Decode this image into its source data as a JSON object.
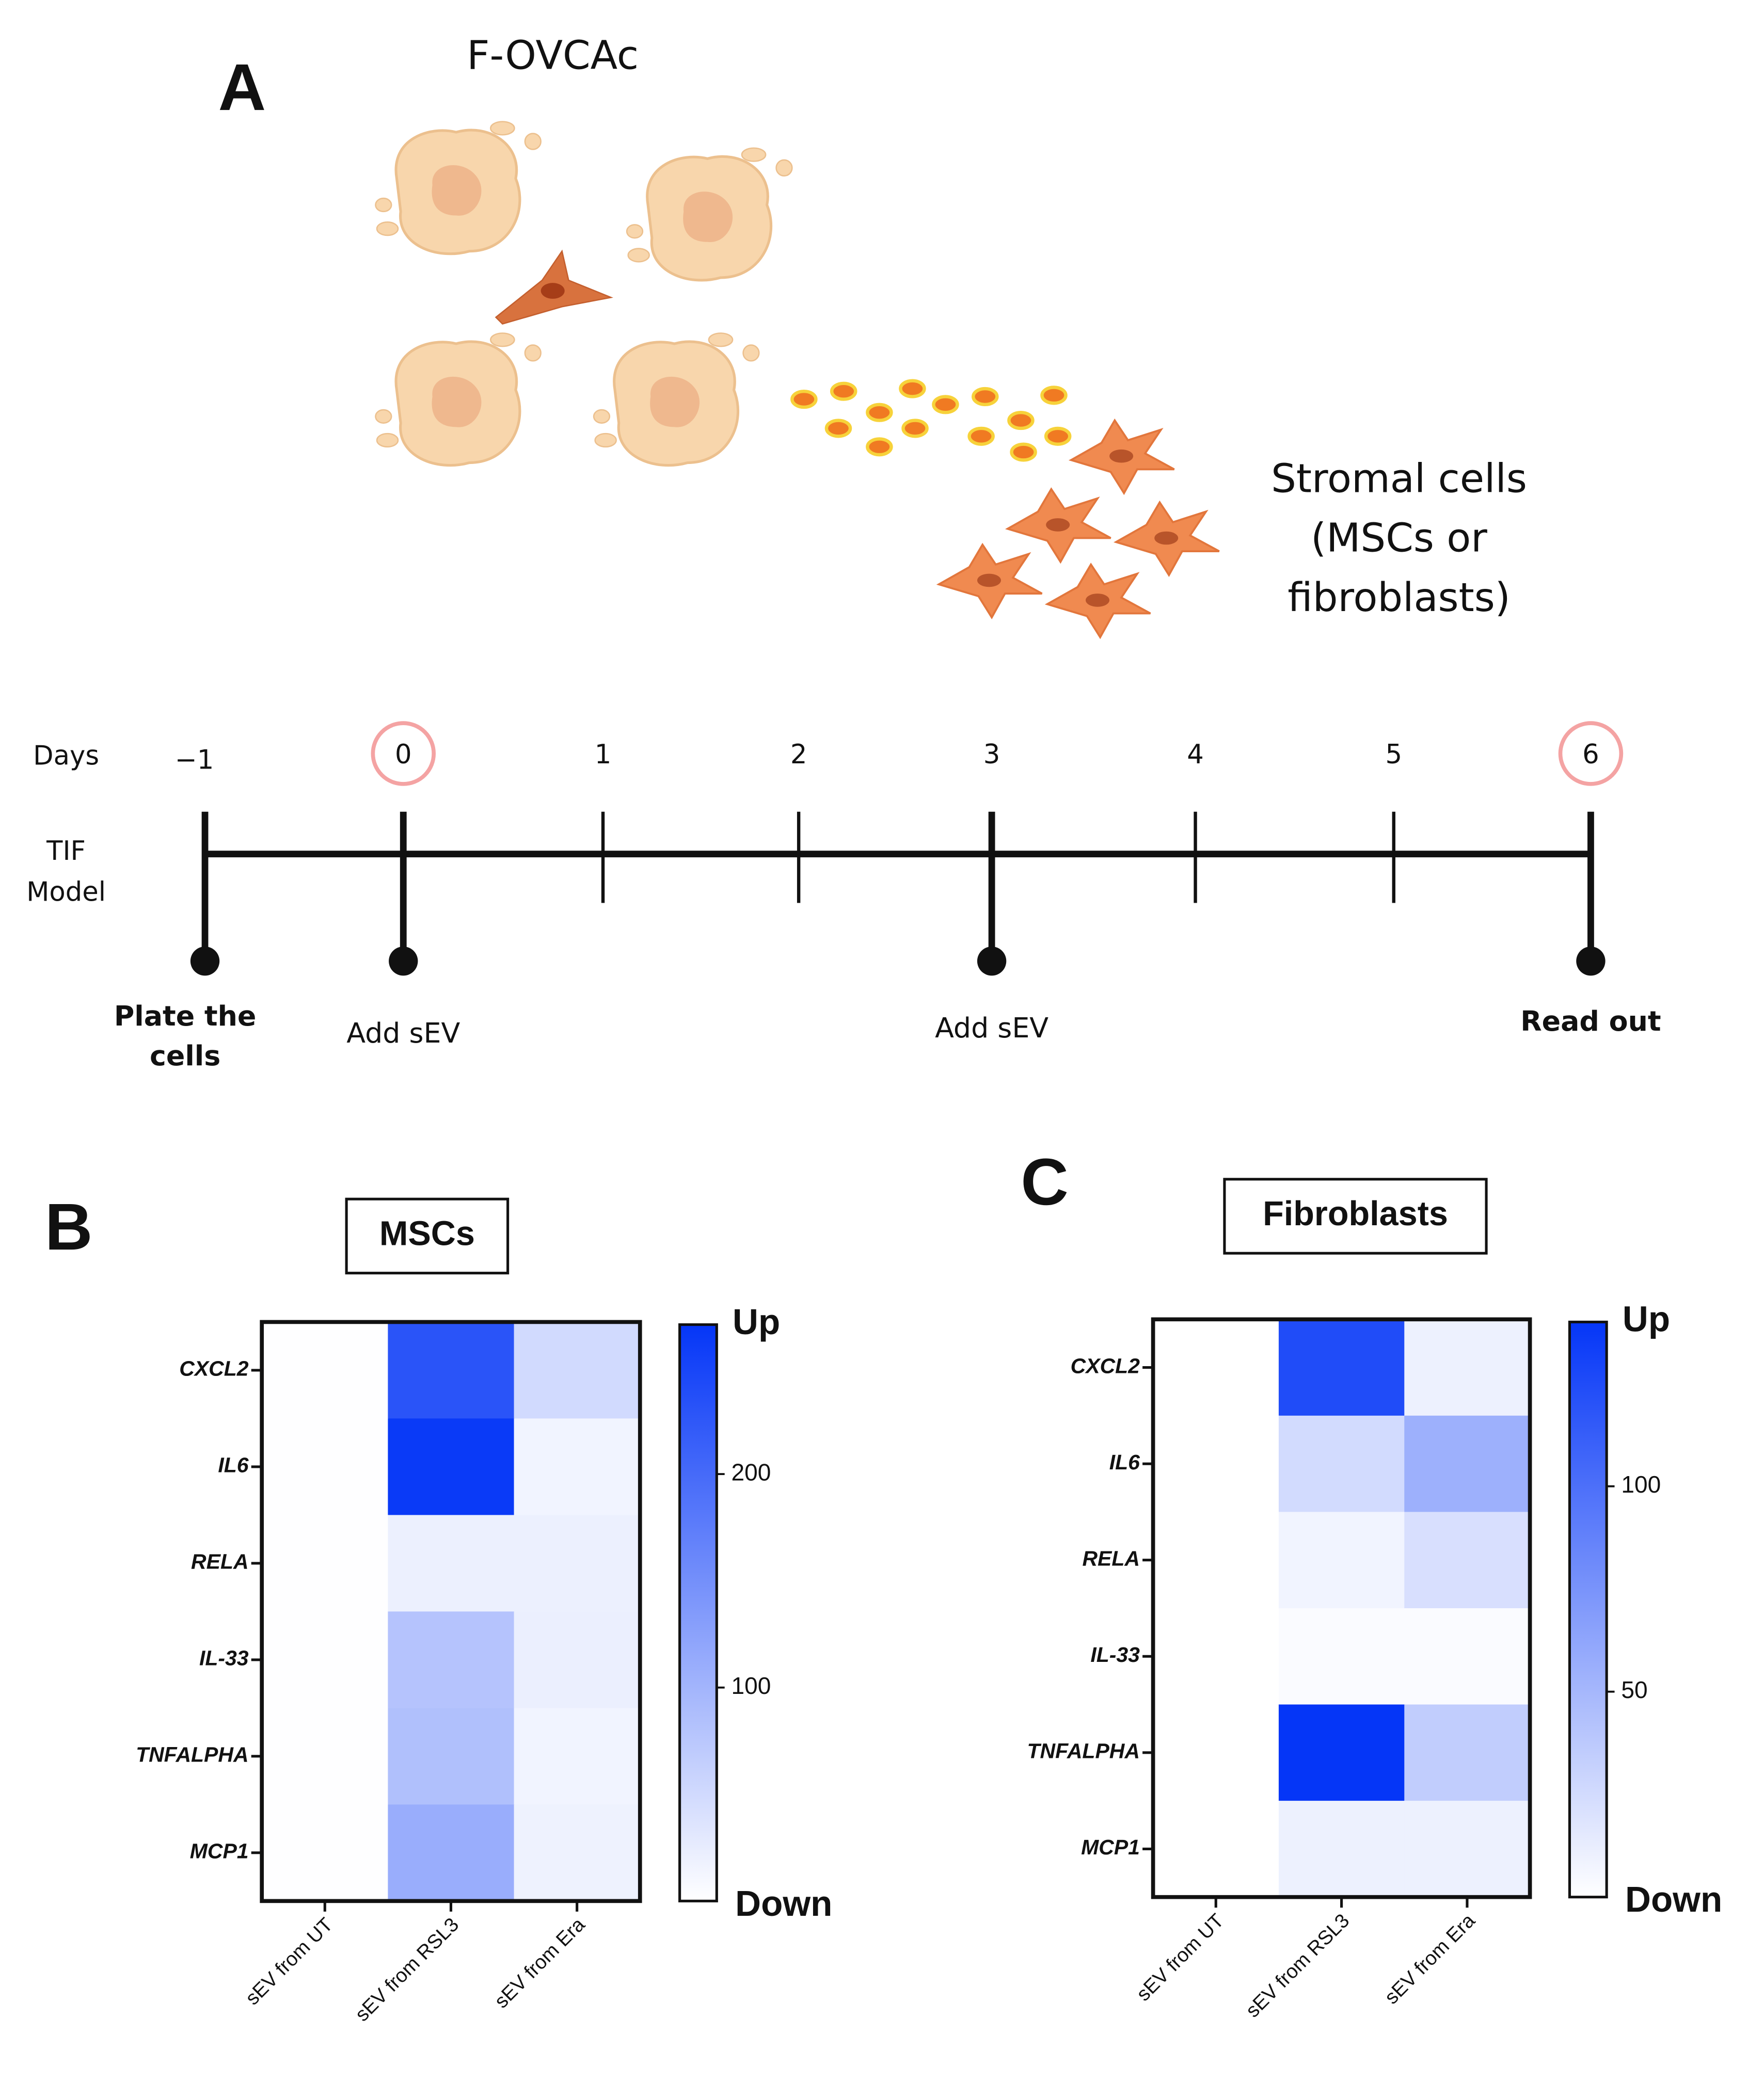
{
  "panel_a": {
    "label": "A",
    "culture_label": "F-OVCAc",
    "stromal_label": [
      "Stromal cells",
      "(MSCs or",
      "fibroblasts)"
    ],
    "timeline": {
      "row_label_days": "Days",
      "row_label_model": [
        "TIF",
        "Model"
      ],
      "days": [
        "−1",
        "0",
        "1",
        "2",
        "3",
        "4",
        "5",
        "6"
      ],
      "events": [
        {
          "label": [
            "Plate the",
            "cells"
          ]
        },
        {
          "label": [
            "Add sEV"
          ]
        },
        {
          "label": [
            "Add sEV"
          ]
        },
        {
          "label": [
            "Read out"
          ]
        }
      ]
    }
  },
  "chart_data": [
    {
      "type": "heatmap",
      "panel": "B",
      "title": "MSCs",
      "rows": [
        "CXCL2",
        "IL6",
        "RELA",
        "IL-33",
        "TNFALPHA",
        "MCP1"
      ],
      "columns": [
        "sEV from UT",
        "sEV from RSL3",
        "sEV from Era"
      ],
      "values": [
        [
          1,
          230,
          50
        ],
        [
          1,
          265,
          15
        ],
        [
          1,
          20,
          20
        ],
        [
          1,
          80,
          22
        ],
        [
          1,
          85,
          15
        ],
        [
          1,
          110,
          18
        ]
      ],
      "clim": [
        0,
        270
      ],
      "cticks": [
        100,
        200
      ],
      "cbar_high": "Up",
      "cbar_low": "Down",
      "colors": [
        "#ffffff",
        "#0536f7"
      ]
    },
    {
      "type": "heatmap",
      "panel": "C",
      "title": "Fibroblasts",
      "rows": [
        "CXCL2",
        "IL6",
        "RELA",
        "IL-33",
        "TNFALPHA",
        "MCP1"
      ],
      "columns": [
        "sEV from UT",
        "sEV from RSL3",
        "sEV from Era"
      ],
      "values": [
        [
          0,
          125,
          10
        ],
        [
          0,
          25,
          55
        ],
        [
          0,
          8,
          22
        ],
        [
          0,
          3,
          3
        ],
        [
          0,
          140,
          35
        ],
        [
          0,
          10,
          10
        ]
      ],
      "clim": [
        0,
        140
      ],
      "cticks": [
        50,
        100
      ],
      "cbar_high": "Up",
      "cbar_low": "Down",
      "colors": [
        "#ffffff",
        "#0536f7"
      ]
    }
  ]
}
